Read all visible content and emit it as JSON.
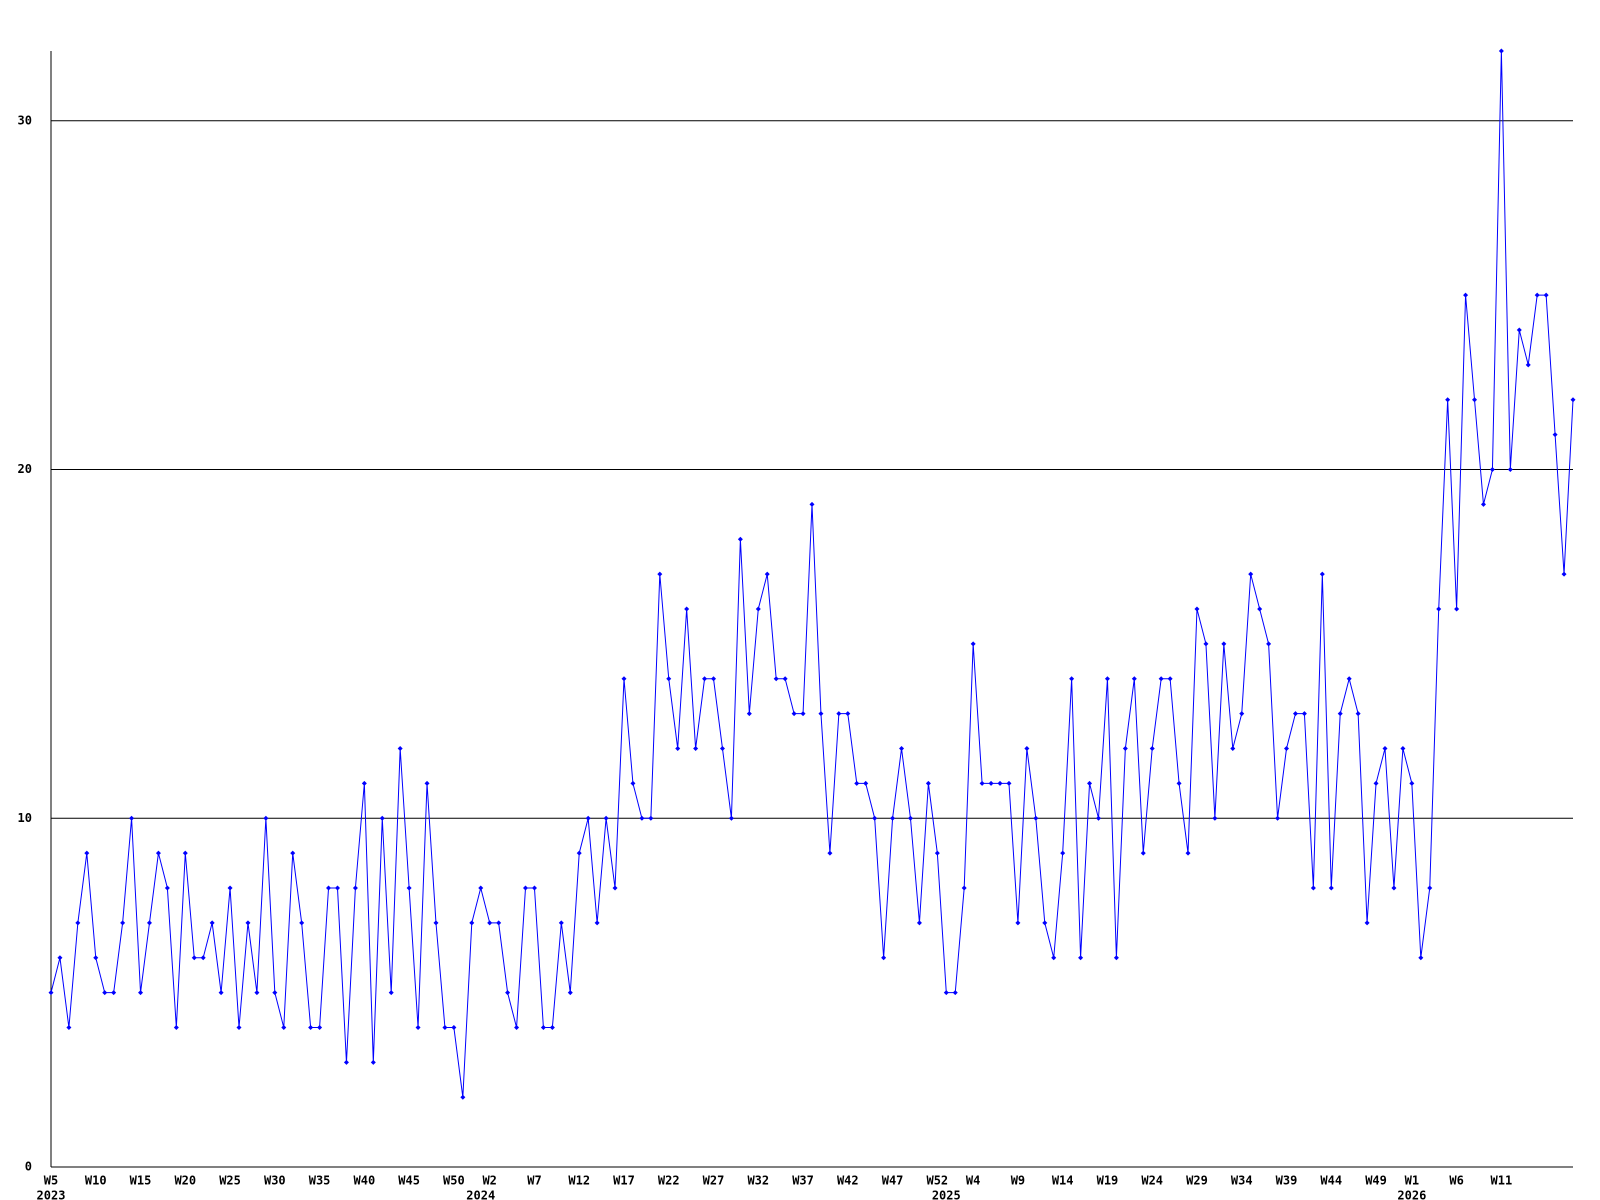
{
  "chart_data": {
    "type": "line",
    "categories": [
      "W5",
      null,
      null,
      null,
      null,
      "W10",
      null,
      null,
      null,
      null,
      "W15",
      null,
      null,
      null,
      null,
      "W20",
      null,
      null,
      null,
      null,
      "W25",
      null,
      null,
      null,
      null,
      "W30",
      null,
      null,
      null,
      null,
      "W35",
      null,
      null,
      null,
      null,
      "W40",
      null,
      null,
      null,
      null,
      "W45",
      null,
      null,
      null,
      null,
      "W50",
      null,
      null,
      null,
      "W2",
      null,
      null,
      null,
      null,
      "W7",
      null,
      null,
      null,
      null,
      "W12",
      null,
      null,
      null,
      null,
      "W17",
      null,
      null,
      null,
      null,
      "W22",
      null,
      null,
      null,
      null,
      "W27",
      null,
      null,
      null,
      null,
      "W32",
      null,
      null,
      null,
      null,
      "W37",
      null,
      null,
      null,
      null,
      "W42",
      null,
      null,
      null,
      null,
      "W47",
      null,
      null,
      null,
      null,
      "W52",
      null,
      null,
      null,
      "W4",
      null,
      null,
      null,
      null,
      "W9",
      null,
      null,
      null,
      null,
      "W14",
      null,
      null,
      null,
      null,
      "W19",
      null,
      null,
      null,
      null,
      "W24",
      null,
      null,
      null,
      null,
      "W29",
      null,
      null,
      null,
      null,
      "W34",
      null,
      null,
      null,
      null,
      "W39",
      null,
      null,
      null,
      null,
      "W44",
      null,
      null,
      null,
      null,
      "W49",
      null,
      null,
      null,
      "W1",
      null,
      null,
      null,
      null,
      "W6",
      null,
      null,
      null,
      null,
      "W11",
      null,
      null,
      null,
      null,
      null,
      null,
      null,
      null
    ],
    "year_labels": [
      "2023",
      null,
      null,
      null,
      null,
      null,
      null,
      null,
      null,
      null,
      null,
      null,
      null,
      null,
      null,
      null,
      null,
      null,
      null,
      null,
      null,
      null,
      null,
      null,
      null,
      null,
      null,
      null,
      null,
      null,
      null,
      null,
      null,
      null,
      null,
      null,
      null,
      null,
      null,
      null,
      null,
      null,
      null,
      null,
      null,
      null,
      null,
      null,
      "2024",
      null,
      null,
      null,
      null,
      null,
      null,
      null,
      null,
      null,
      null,
      null,
      null,
      null,
      null,
      null,
      null,
      null,
      null,
      null,
      null,
      null,
      null,
      null,
      null,
      null,
      null,
      null,
      null,
      null,
      null,
      null,
      null,
      null,
      null,
      null,
      null,
      null,
      null,
      null,
      null,
      null,
      null,
      null,
      null,
      null,
      null,
      null,
      null,
      null,
      null,
      null,
      "2025",
      null,
      null,
      null,
      null,
      null,
      null,
      null,
      null,
      null,
      null,
      null,
      null,
      null,
      null,
      null,
      null,
      null,
      null,
      null,
      null,
      null,
      null,
      null,
      null,
      null,
      null,
      null,
      null,
      null,
      null,
      null,
      null,
      null,
      null,
      null,
      null,
      null,
      null,
      null,
      null,
      null,
      null,
      null,
      null,
      null,
      null,
      null,
      null,
      null,
      null,
      null,
      "2026",
      null,
      null,
      null,
      null,
      null,
      null,
      null,
      null,
      null,
      null,
      null,
      null,
      null,
      null,
      null,
      null,
      null,
      null
    ],
    "values": [
      5,
      6,
      4,
      7,
      9,
      6,
      5,
      5,
      7,
      10,
      5,
      7,
      9,
      8,
      4,
      9,
      6,
      6,
      7,
      5,
      8,
      4,
      7,
      5,
      10,
      5,
      4,
      9,
      7,
      4,
      4,
      8,
      8,
      3,
      8,
      11,
      3,
      10,
      5,
      12,
      8,
      4,
      11,
      7,
      4,
      4,
      2,
      7,
      8,
      7,
      7,
      5,
      4,
      8,
      8,
      4,
      4,
      7,
      5,
      9,
      10,
      7,
      10,
      8,
      14,
      11,
      10,
      10,
      17,
      14,
      12,
      16,
      12,
      14,
      14,
      12,
      10,
      18,
      13,
      16,
      17,
      14,
      14,
      13,
      13,
      19,
      13,
      9,
      13,
      13,
      11,
      11,
      10,
      6,
      10,
      12,
      10,
      7,
      11,
      9,
      5,
      5,
      8,
      15,
      11,
      11,
      11,
      11,
      7,
      12,
      10,
      7,
      6,
      9,
      14,
      6,
      11,
      10,
      14,
      6,
      12,
      14,
      9,
      12,
      14,
      14,
      11,
      9,
      16,
      15,
      10,
      15,
      12,
      13,
      17,
      16,
      15,
      10,
      12,
      13,
      13,
      8,
      17,
      8,
      13,
      14,
      13,
      7,
      11,
      12,
      8,
      12,
      11,
      6,
      8,
      16,
      22,
      16,
      25,
      22,
      19,
      20,
      32,
      20,
      24,
      23,
      25,
      25,
      21,
      17,
      22
    ],
    "color": "#0000ff",
    "ylim": [
      0,
      32
    ],
    "yticks": [
      0,
      10,
      20,
      30
    ],
    "grid": true
  }
}
